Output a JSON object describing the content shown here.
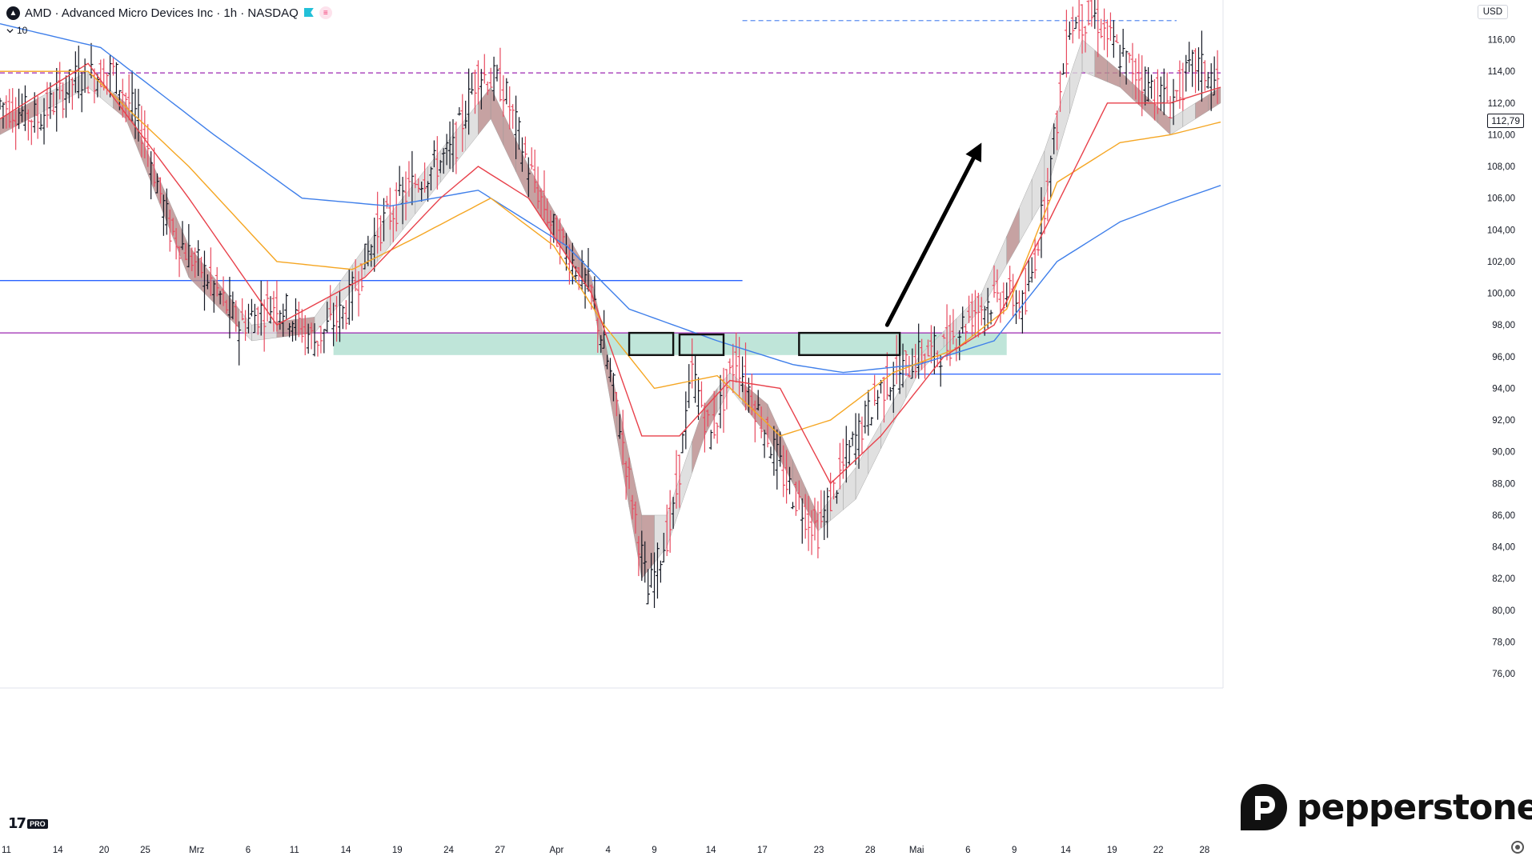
{
  "header": {
    "title": "AMD · Advanced Micro Devices Inc · 1h · NASDAQ",
    "indicator_value": "10",
    "currency": "USD",
    "last_price": "112,79"
  },
  "branding": {
    "platform_badge": "PRO",
    "broker_name": "pepperstone"
  },
  "chart_data": {
    "type": "candlestick",
    "timeframe": "1h",
    "symbol": "AMD",
    "exchange": "NASDAQ",
    "y_range": [
      75.5,
      118.5
    ],
    "y_ticks": [
      "76,00",
      "78,00",
      "80,00",
      "82,00",
      "84,00",
      "86,00",
      "88,00",
      "90,00",
      "92,00",
      "94,00",
      "96,00",
      "98,00",
      "100,00",
      "102,00",
      "104,00",
      "106,00",
      "108,00",
      "110,00",
      "112,00",
      "114,00",
      "116,00"
    ],
    "x_ticks": [
      "11",
      "14",
      "20",
      "25",
      "Mrz",
      "6",
      "11",
      "14",
      "19",
      "24",
      "27",
      "Apr",
      "4",
      "9",
      "14",
      "17",
      "23",
      "28",
      "Mai",
      "6",
      "9",
      "14",
      "19",
      "22",
      "28"
    ],
    "price_path": [
      [
        0,
        112
      ],
      [
        6,
        111
      ],
      [
        12,
        113.5
      ],
      [
        18,
        114
      ],
      [
        23,
        110
      ],
      [
        27,
        104
      ],
      [
        33,
        101
      ],
      [
        38,
        98
      ],
      [
        44,
        99.5
      ],
      [
        50,
        97
      ],
      [
        55,
        99
      ],
      [
        60,
        104
      ],
      [
        66,
        107
      ],
      [
        72,
        109
      ],
      [
        76,
        114
      ],
      [
        80,
        113
      ],
      [
        84,
        108
      ],
      [
        88,
        104
      ],
      [
        94,
        100
      ],
      [
        98,
        93
      ],
      [
        103,
        81
      ],
      [
        107,
        86
      ],
      [
        110,
        95
      ],
      [
        113,
        91
      ],
      [
        117,
        96
      ],
      [
        121,
        92
      ],
      [
        125,
        88
      ],
      [
        130,
        85
      ],
      [
        135,
        90
      ],
      [
        140,
        94
      ],
      [
        146,
        96
      ],
      [
        150,
        96.5
      ],
      [
        155,
        99
      ],
      [
        160,
        100
      ],
      [
        163,
        99
      ],
      [
        167,
        108
      ],
      [
        170,
        117
      ],
      [
        174,
        117.5
      ],
      [
        178,
        115
      ],
      [
        183,
        113
      ],
      [
        186,
        112
      ],
      [
        190,
        114.5
      ],
      [
        194,
        113
      ]
    ],
    "ema_red": [
      [
        0,
        111
      ],
      [
        14,
        114.5
      ],
      [
        30,
        106
      ],
      [
        44,
        98
      ],
      [
        58,
        101
      ],
      [
        70,
        106
      ],
      [
        76,
        108
      ],
      [
        84,
        106
      ],
      [
        94,
        100
      ],
      [
        102,
        91
      ],
      [
        108,
        91
      ],
      [
        116,
        94.5
      ],
      [
        124,
        94
      ],
      [
        132,
        88
      ],
      [
        140,
        91
      ],
      [
        150,
        96
      ],
      [
        158,
        98
      ],
      [
        166,
        104
      ],
      [
        176,
        112
      ],
      [
        186,
        112
      ],
      [
        194,
        113
      ]
    ],
    "ema_orange": [
      [
        0,
        114
      ],
      [
        14,
        114
      ],
      [
        30,
        108
      ],
      [
        44,
        102
      ],
      [
        56,
        101.5
      ],
      [
        66,
        103.5
      ],
      [
        78,
        106
      ],
      [
        88,
        103
      ],
      [
        96,
        98
      ],
      [
        104,
        94
      ],
      [
        114,
        94.8
      ],
      [
        124,
        91
      ],
      [
        132,
        92
      ],
      [
        142,
        95
      ],
      [
        152,
        96.5
      ],
      [
        160,
        99
      ],
      [
        168,
        107
      ],
      [
        178,
        109.5
      ],
      [
        186,
        110
      ],
      [
        194,
        110.8
      ]
    ],
    "ema_blue": [
      [
        0,
        117
      ],
      [
        16,
        115.5
      ],
      [
        34,
        110
      ],
      [
        48,
        106
      ],
      [
        62,
        105.5
      ],
      [
        76,
        106.5
      ],
      [
        90,
        103
      ],
      [
        100,
        99
      ],
      [
        114,
        97
      ],
      [
        126,
        95.5
      ],
      [
        134,
        95
      ],
      [
        146,
        95.5
      ],
      [
        158,
        97
      ],
      [
        168,
        102
      ],
      [
        178,
        104.5
      ],
      [
        186,
        105.7
      ],
      [
        194,
        106.8
      ]
    ],
    "ribbon_top": [
      [
        0,
        111
      ],
      [
        14,
        114
      ],
      [
        20,
        112
      ],
      [
        30,
        103
      ],
      [
        40,
        98
      ],
      [
        50,
        98.5
      ],
      [
        60,
        104
      ],
      [
        72,
        110
      ],
      [
        78,
        113
      ],
      [
        84,
        108
      ],
      [
        94,
        101
      ],
      [
        102,
        86
      ],
      [
        106,
        86
      ],
      [
        112,
        93
      ],
      [
        116,
        95
      ],
      [
        122,
        93
      ],
      [
        130,
        86
      ],
      [
        136,
        89
      ],
      [
        146,
        96
      ],
      [
        156,
        100
      ],
      [
        166,
        109
      ],
      [
        172,
        116
      ],
      [
        178,
        114
      ],
      [
        186,
        111
      ],
      [
        194,
        113
      ]
    ],
    "ribbon_bottom": [
      [
        0,
        110
      ],
      [
        14,
        113
      ],
      [
        20,
        111
      ],
      [
        30,
        101
      ],
      [
        40,
        97
      ],
      [
        50,
        97.5
      ],
      [
        60,
        102
      ],
      [
        72,
        108
      ],
      [
        78,
        111
      ],
      [
        84,
        106
      ],
      [
        94,
        100
      ],
      [
        102,
        82
      ],
      [
        106,
        84
      ],
      [
        112,
        91
      ],
      [
        116,
        94
      ],
      [
        122,
        91
      ],
      [
        130,
        85
      ],
      [
        136,
        87
      ],
      [
        146,
        95
      ],
      [
        156,
        99
      ],
      [
        166,
        106
      ],
      [
        172,
        114
      ],
      [
        178,
        113
      ],
      [
        186,
        110
      ],
      [
        194,
        112
      ]
    ],
    "horizontal_levels": [
      {
        "price": 113.9,
        "style": "dashed",
        "color": "#9c27b0"
      },
      {
        "price": 117.2,
        "style": "dashed",
        "color": "#5b8def"
      },
      {
        "price": 100.8,
        "style": "solid",
        "color": "#2962ff"
      },
      {
        "price": 97.5,
        "style": "solid",
        "color": "#9c27b0"
      },
      {
        "price": 94.9,
        "style": "solid",
        "color": "#2962ff"
      }
    ],
    "support_zone": {
      "low": 96.1,
      "high": 97.5,
      "color": "#a9dccc"
    },
    "boxes": [
      {
        "x_from": 100,
        "x_to": 107,
        "low": 96.1,
        "high": 97.5
      },
      {
        "x_from": 108,
        "x_to": 115,
        "low": 96.1,
        "high": 97.4
      },
      {
        "x_from": 127,
        "x_to": 143,
        "low": 96.1,
        "high": 97.5
      }
    ],
    "arrow": {
      "from": [
        141,
        98
      ],
      "to": [
        156,
        109.5
      ]
    }
  },
  "colors": {
    "up_candle": "#131722",
    "down_candle": "#e84a5f",
    "ema_red": "#e8414b",
    "ema_orange": "#f5a623",
    "ema_blue": "#3f7fea",
    "ribbon_down": "#b88b8b",
    "ribbon_up": "#d8d8d8"
  },
  "icons": {
    "logo": "tradingview-logo-icon",
    "flag": "flag-icon",
    "menu": "indicator-menu-icon",
    "settings": "gear-icon"
  }
}
